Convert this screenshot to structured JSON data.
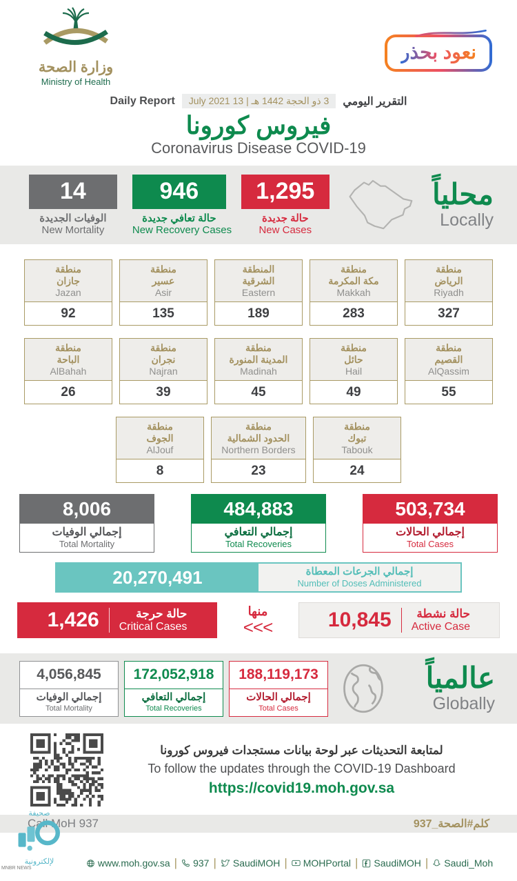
{
  "colors": {
    "green": "#0e8a4e",
    "red": "#d62a3e",
    "gray": "#6d6e70",
    "teal": "#6ac5c0",
    "gold": "#a3915f"
  },
  "header": {
    "logo_ar": "وزارة الصحة",
    "logo_en": "Ministry of Health",
    "badge": "نعود بحذر",
    "report_label_en": "Daily Report",
    "report_date": "3 ذو الحجة 1442 هـ | 13 July 2021",
    "report_label_ar": "التقرير اليومي",
    "title_ar": "فيروس كورونا",
    "title_en": "Coronavirus Disease COVID-19"
  },
  "locally": {
    "title_ar": "محلياً",
    "title_en": "Locally",
    "stats": [
      {
        "value": "14",
        "label_ar": "الوفيات الجديدة",
        "label_en": "New Mortality"
      },
      {
        "value": "946",
        "label_ar": "حالة تعافي جديدة",
        "label_en": "New Recovery Cases"
      },
      {
        "value": "1,295",
        "label_ar": "حالة جديدة",
        "label_en": "New Cases"
      }
    ]
  },
  "regions": {
    "rows": [
      [
        {
          "ar1": "منطقة",
          "ar2": "الرياض",
          "en": "Riyadh",
          "value": "327"
        },
        {
          "ar1": "منطقة",
          "ar2": "مكة المكرمة",
          "en": "Makkah",
          "value": "283"
        },
        {
          "ar1": "المنطقة",
          "ar2": "الشرقية",
          "en": "Eastern",
          "value": "189"
        },
        {
          "ar1": "منطقة",
          "ar2": "عسير",
          "en": "Asir",
          "value": "135"
        },
        {
          "ar1": "منطقة",
          "ar2": "جازان",
          "en": "Jazan",
          "value": "92"
        }
      ],
      [
        {
          "ar1": "منطقة",
          "ar2": "القصيم",
          "en": "AlQassim",
          "value": "55"
        },
        {
          "ar1": "منطقة",
          "ar2": "حائل",
          "en": "Hail",
          "value": "49"
        },
        {
          "ar1": "منطقة",
          "ar2": "المدينة المنورة",
          "en": "Madinah",
          "value": "45"
        },
        {
          "ar1": "منطقة",
          "ar2": "نجران",
          "en": "Najran",
          "value": "39"
        },
        {
          "ar1": "منطقة",
          "ar2": "الباحة",
          "en": "AlBahah",
          "value": "26"
        }
      ],
      [
        {
          "ar1": "منطقة",
          "ar2": "تبوك",
          "en": "Tabouk",
          "value": "24"
        },
        {
          "ar1": "منطقة",
          "ar2": "الحدود الشمالية",
          "en": "Northern Borders",
          "value": "23"
        },
        {
          "ar1": "منطقة",
          "ar2": "الجوف",
          "en": "AlJouf",
          "value": "8"
        }
      ]
    ]
  },
  "totals": [
    {
      "value": "8,006",
      "label_ar": "إجمالي الوفيات",
      "label_en": "Total Mortality"
    },
    {
      "value": "484,883",
      "label_ar": "إجمالي التعافي",
      "label_en": "Total Recoveries"
    },
    {
      "value": "503,734",
      "label_ar": "إجمالي الحالات",
      "label_en": "Total Cases"
    }
  ],
  "doses": {
    "value": "20,270,491",
    "label_ar": "إجمالي الجرعات المعطاة",
    "label_en": "Number of Doses Administered"
  },
  "critical": {
    "value": "1,426",
    "label_ar": "حالة حرجة",
    "label_en": "Critical Cases"
  },
  "of_which": {
    "label_ar": "منها",
    "chevrons": "<<<"
  },
  "active": {
    "value": "10,845",
    "label_ar": "حالة نشطة",
    "label_en": "Active Case"
  },
  "globally": {
    "title_ar": "عالمياً",
    "title_en": "Globally",
    "stats": [
      {
        "value": "4,056,845",
        "label_ar": "إجمالي الوفيات",
        "label_en": "Total Mortality"
      },
      {
        "value": "172,052,918",
        "label_ar": "إجمالي التعافي",
        "label_en": "Total Recoveries"
      },
      {
        "value": "188,119,173",
        "label_ar": "إجمالي الحالات",
        "label_en": "Total Cases"
      }
    ]
  },
  "dashboard": {
    "line_ar": "لمتابعة التحديثات عبر لوحة بيانات مستجدات فيروس كورونا",
    "line_en": "To follow the updates through the COVID-19 Dashboard",
    "url": "https://covid19.moh.gov.sa"
  },
  "footer": {
    "call": "Call MoH 937",
    "hashtag": "كلم#الصحة_937",
    "social": [
      {
        "icon": "globe-icon",
        "label": "www.moh.gov.sa"
      },
      {
        "icon": "phone-icon",
        "label": "937"
      },
      {
        "icon": "twitter-icon",
        "label": "SaudiMOH"
      },
      {
        "icon": "youtube-icon",
        "label": "MOHPortal"
      },
      {
        "icon": "facebook-icon",
        "label": "SaudiMOH"
      },
      {
        "icon": "snapchat-icon",
        "label": "Saudi_Moh"
      }
    ]
  },
  "watermark": {
    "top": "صحيفة",
    "bottom": "لإلكترونية",
    "tiny": "MNBR NEWS"
  }
}
